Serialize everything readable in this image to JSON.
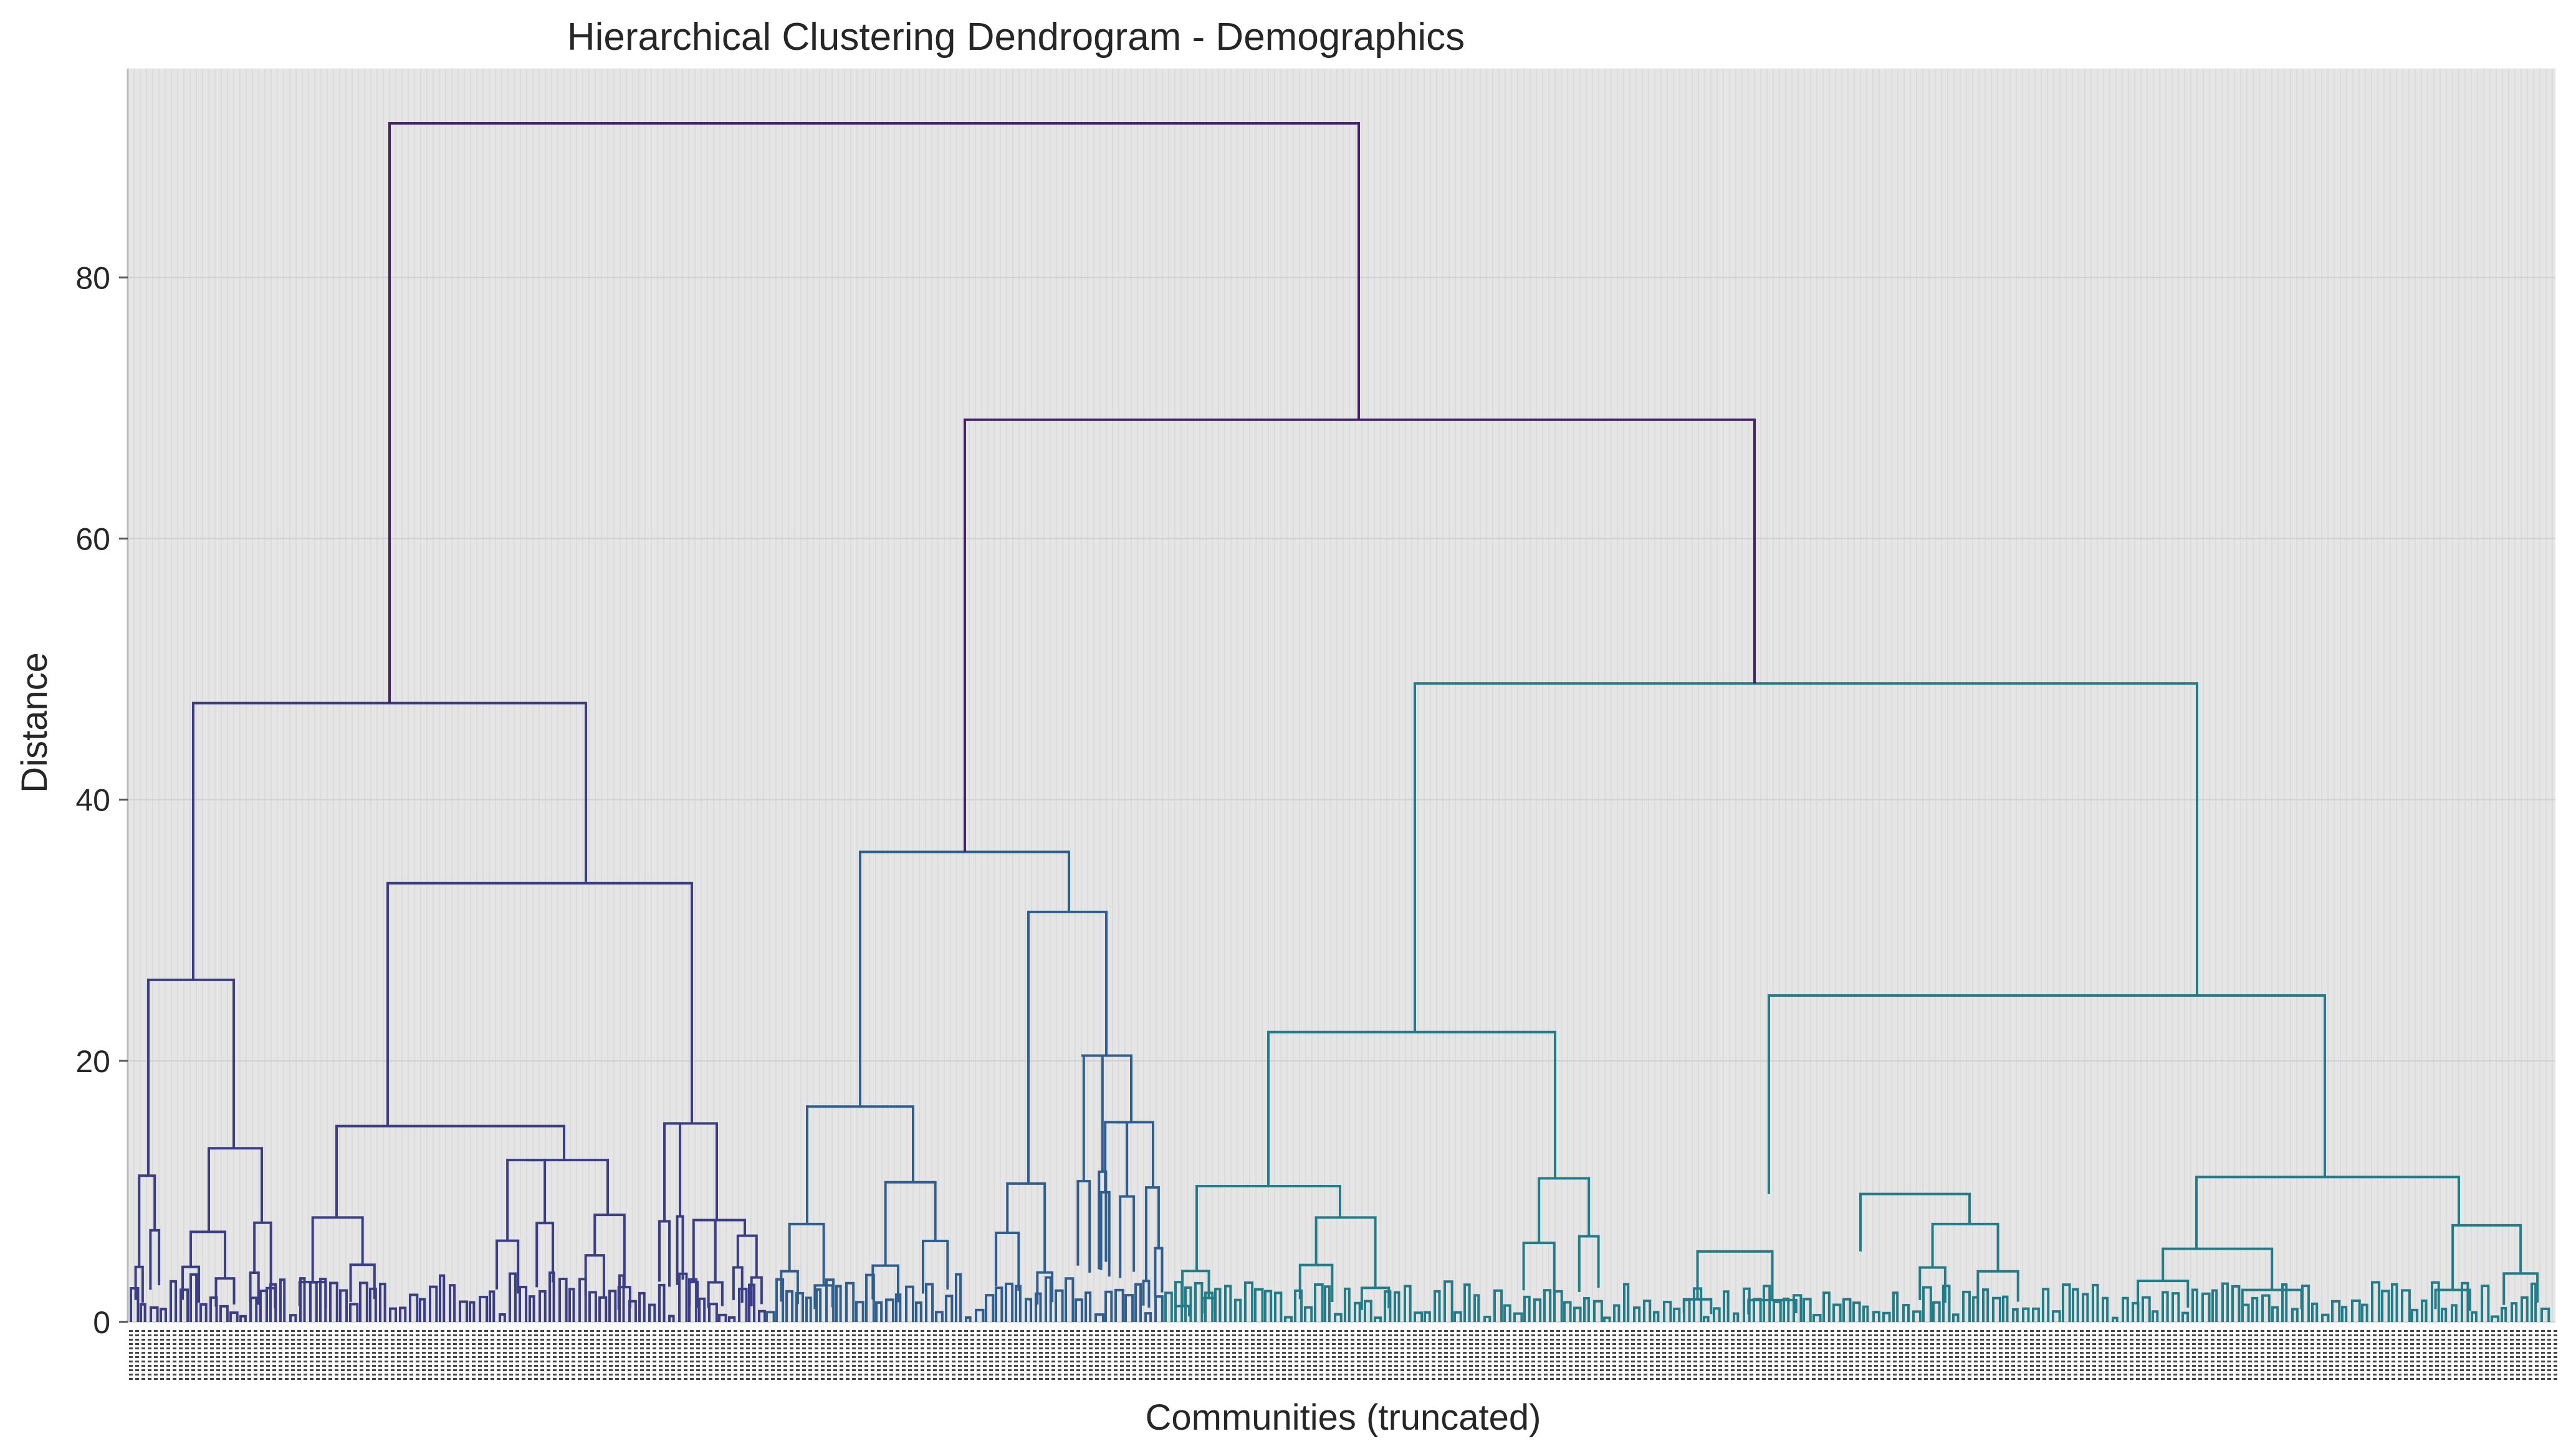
{
  "chart_data": {
    "type": "dendrogram",
    "title": "Hierarchical Clustering Dendrogram - Demographics",
    "xlabel": "Communities (truncated)",
    "ylabel": "Distance",
    "ylim": [
      0,
      96
    ],
    "yticks": [
      0,
      20,
      40,
      60,
      80
    ],
    "grid": true,
    "legend": "none",
    "leaf_labels_note": "leaf labels are rendered as dense overlapping numeric IDs (illegible)",
    "colors": {
      "plot_background": "#e5e5e5",
      "grid": "#d0d0d0",
      "cluster_1": "#3b3e86",
      "cluster_2": "#2f5e8f",
      "cluster_3": "#237d89",
      "root_links": "#44216b"
    },
    "merges": [
      {
        "height": 91.8,
        "between": [
          "left_group",
          "right_group"
        ],
        "color": "root_links"
      },
      {
        "height": 69.1,
        "between": [
          "middle_group",
          "right_subgroup"
        ],
        "color": "root_links"
      },
      {
        "height": 47.4,
        "between": [
          "left_a",
          "left_b"
        ],
        "color": "cluster_1"
      },
      {
        "height": 33.6,
        "between": [
          "left_b1",
          "left_b2"
        ],
        "color": "cluster_1"
      },
      {
        "height": 26.2,
        "between": [
          "left_a1",
          "left_a2"
        ],
        "color": "cluster_1"
      },
      {
        "height": 36.0,
        "between": [
          "mid_a",
          "mid_b"
        ],
        "color": "cluster_2"
      },
      {
        "height": 31.4,
        "between": [
          "mid_b1",
          "mid_b2"
        ],
        "color": "cluster_2"
      },
      {
        "height": 48.9,
        "between": [
          "right_a",
          "right_b"
        ],
        "color": "cluster_3"
      },
      {
        "height": 25.0,
        "between": [
          "right_b1",
          "right_b2"
        ],
        "color": "cluster_3"
      },
      {
        "height": 22.2,
        "between": [
          "right_a1",
          "right_a2"
        ],
        "color": "cluster_3"
      }
    ]
  }
}
